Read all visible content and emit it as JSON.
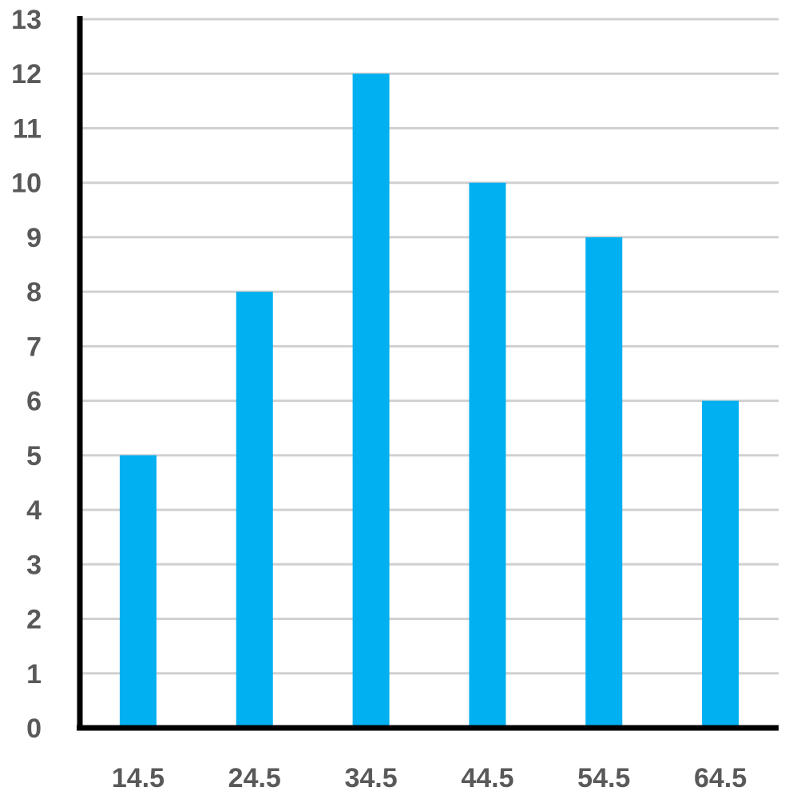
{
  "chart_data": {
    "type": "bar",
    "categories": [
      "14.5",
      "24.5",
      "34.5",
      "44.5",
      "54.5",
      "64.5"
    ],
    "values": [
      5,
      8,
      12,
      10,
      9,
      6
    ],
    "y_ticks": [
      "0",
      "1",
      "2",
      "3",
      "4",
      "5",
      "6",
      "7",
      "8",
      "9",
      "10",
      "11",
      "12",
      "13"
    ],
    "ylim": [
      0,
      13
    ],
    "title": "",
    "xlabel": "",
    "ylabel": "",
    "grid": true,
    "legend": "none",
    "colors": {
      "bar": "#00b0f0",
      "grid": "#d0d0d0",
      "axis": "#000000",
      "tick_text": "#595959"
    }
  }
}
